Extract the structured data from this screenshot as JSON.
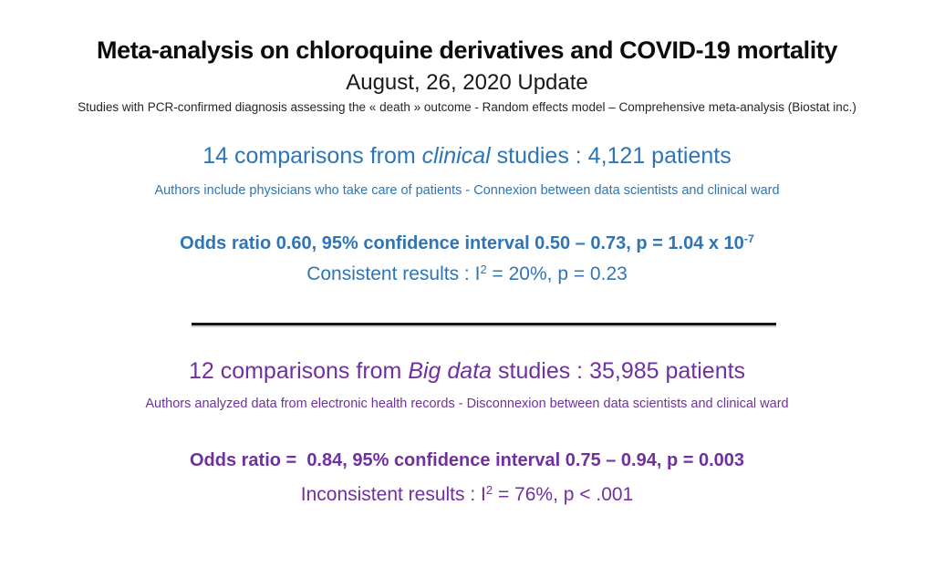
{
  "slide": {
    "title": "Meta-analysis on chloroquine derivatives and COVID-19 mortality",
    "subtitle": "August, 26, 2020 Update",
    "methods_note": "Studies with PCR-confirmed diagnosis assessing the « death » outcome - Random effects model – Comprehensive meta-analysis (Biostat inc.)"
  },
  "colors": {
    "clinical_blue": "#2E75B6",
    "bigdata_purple": "#7030A0",
    "title_black": "#0c0c0c",
    "divider_black": "#161616"
  },
  "clinical_section": {
    "heading_prefix": "14 comparisons from ",
    "heading_emphasis": "clinical",
    "heading_suffix": " studies : 4,121 patients",
    "subnote": "Authors include physicians who take care of patients - Connexion between data scientists and clinical ward",
    "odds_ratio_text": "Odds ratio 0.60, 95% confidence interval 0.50 – 0.73, p = 1.04 x 10",
    "odds_ratio_exponent": "-7",
    "consistency_prefix": "Consistent results : I",
    "consistency_sup": "2",
    "consistency_suffix": " = 20%, p = 0.23"
  },
  "bigdata_section": {
    "heading_prefix": "12 comparisons from ",
    "heading_emphasis": "Big data",
    "heading_suffix": " studies : 35,985 patients",
    "subnote": "Authors analyzed data from electronic health records - Disconnexion between data scientists and clinical ward",
    "odds_ratio_text": "Odds ratio =  0.84, 95% confidence interval 0.75 – 0.94, p = 0.003",
    "consistency_prefix": "Inconsistent results : I",
    "consistency_sup": "2",
    "consistency_suffix": " = 76%, p < .001"
  }
}
